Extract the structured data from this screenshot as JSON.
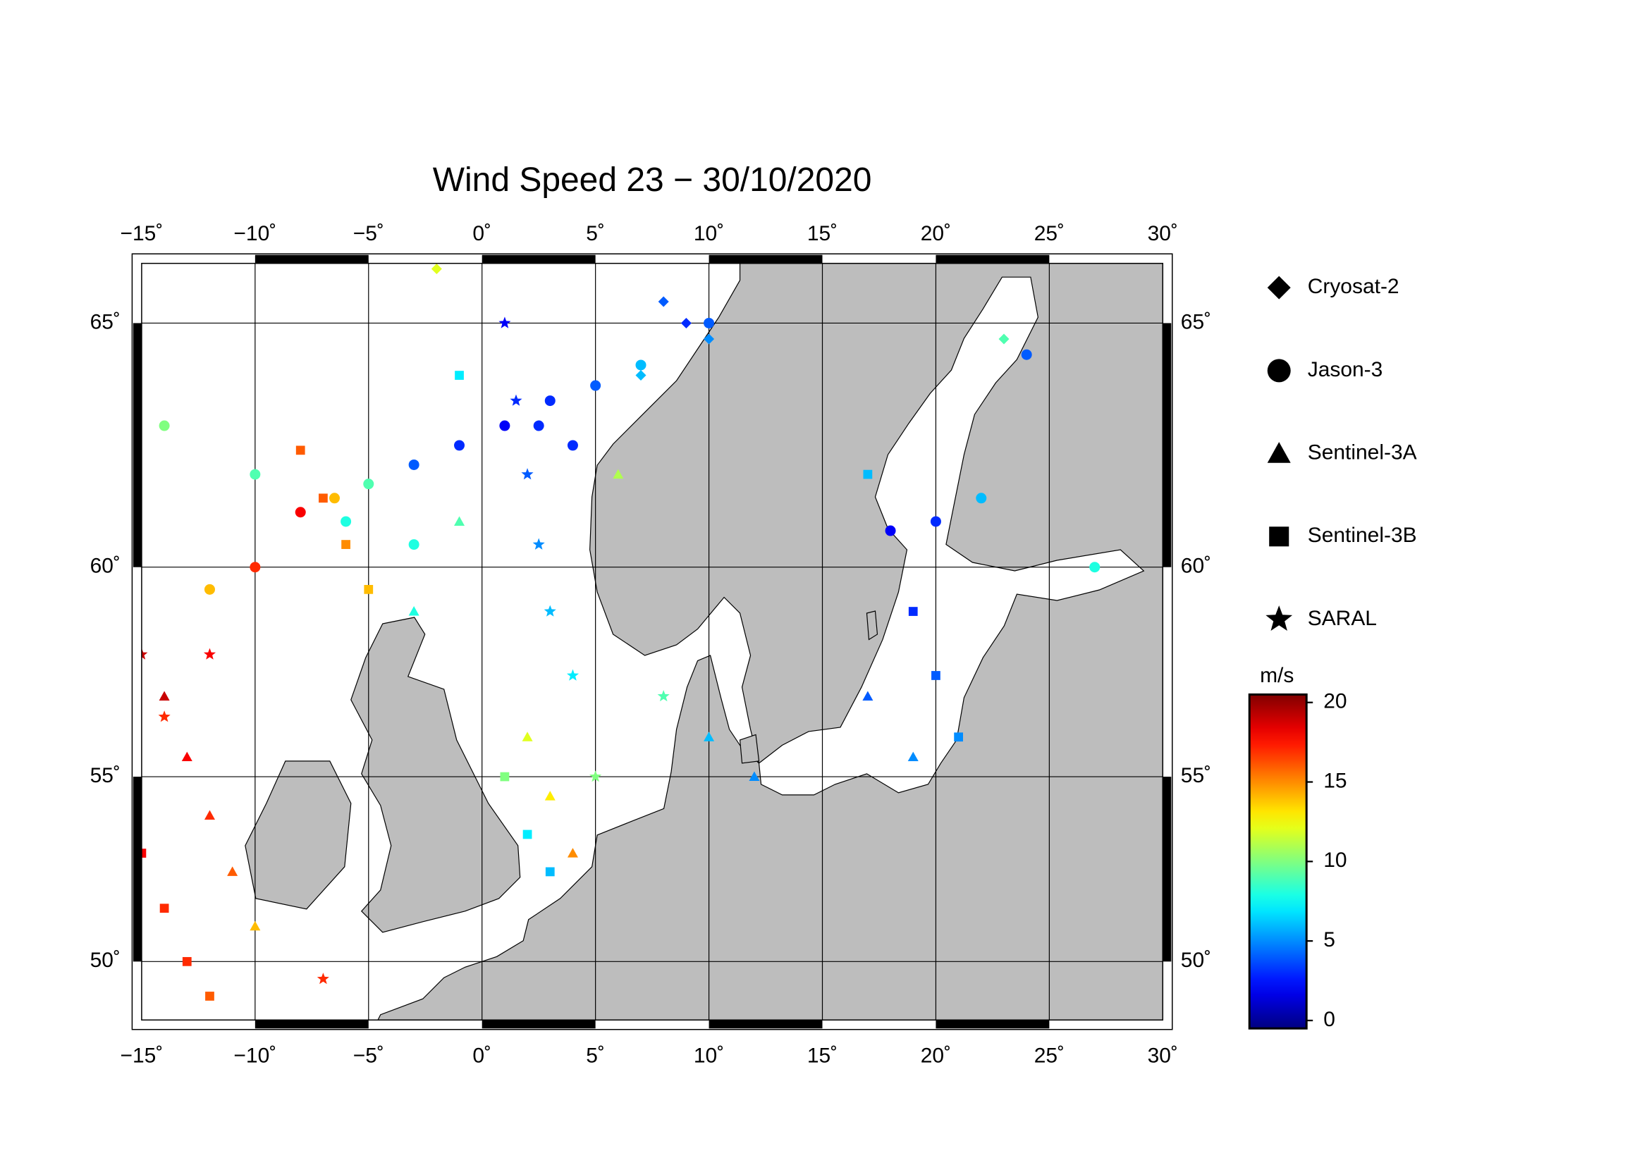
{
  "chart_data": {
    "type": "scatter",
    "title": "Wind Speed 23 − 30/10/2020",
    "projection": "mercator",
    "xlim": [
      -15,
      30
    ],
    "ylim": [
      48.3,
      66.1
    ],
    "xticks": [
      {
        "value": -15,
        "label": "−15˚"
      },
      {
        "value": -10,
        "label": "−10˚"
      },
      {
        "value": -5,
        "label": "−5˚"
      },
      {
        "value": 0,
        "label": "0˚"
      },
      {
        "value": 5,
        "label": "5˚"
      },
      {
        "value": 10,
        "label": "10˚"
      },
      {
        "value": 15,
        "label": "15˚"
      },
      {
        "value": 20,
        "label": "20˚"
      },
      {
        "value": 25,
        "label": "25˚"
      },
      {
        "value": 30,
        "label": "30˚"
      }
    ],
    "yticks": [
      {
        "value": 50,
        "label": "50˚"
      },
      {
        "value": 55,
        "label": "55˚"
      },
      {
        "value": 60,
        "label": "60˚"
      },
      {
        "value": 65,
        "label": "65˚"
      }
    ],
    "grid": true,
    "legend": "right",
    "colorbar": {
      "label": "m/s",
      "lim": [
        -0.5,
        20.5
      ],
      "ticks": [
        0,
        5,
        10,
        15,
        20
      ],
      "colormap": "jet"
    },
    "series": [
      {
        "name": "Cryosat-2",
        "marker": "diamond",
        "x": [
          8,
          9,
          10,
          7,
          -2,
          23
        ],
        "y": [
          65.4,
          65,
          64.7,
          64,
          66,
          64.7
        ],
        "values": [
          4,
          3,
          5,
          6,
          12,
          9
        ]
      },
      {
        "name": "Jason-3",
        "marker": "circle",
        "x": [
          -8,
          -6.5,
          -5,
          -3,
          -1,
          1,
          3,
          5,
          7,
          10,
          -10,
          -12,
          -14,
          -10,
          -6,
          -3,
          18,
          20,
          22,
          24,
          27,
          4,
          2.5
        ],
        "y": [
          61.2,
          61.5,
          61.8,
          62.2,
          62.6,
          63,
          63.5,
          63.8,
          64.2,
          65,
          60,
          59.5,
          63,
          62,
          61,
          60.5,
          60.8,
          61,
          61.5,
          64.4,
          60,
          62.6,
          63
        ],
        "values": [
          18,
          14,
          9,
          4,
          3,
          2,
          3,
          4,
          6,
          4,
          17,
          14,
          10,
          9,
          8,
          8,
          2,
          3,
          6,
          4,
          8,
          3,
          3
        ]
      },
      {
        "name": "Sentinel-3A",
        "marker": "triangle",
        "x": [
          -14,
          -13,
          -12,
          -11,
          -10,
          2,
          3,
          4,
          10,
          12,
          17,
          19,
          -3,
          -1,
          6
        ],
        "y": [
          57,
          55.5,
          54,
          52.5,
          51,
          56,
          54.5,
          53,
          56,
          55,
          57,
          55.5,
          59,
          61,
          62
        ],
        "values": [
          19,
          18,
          17,
          16,
          14,
          12,
          13,
          15,
          6,
          5,
          4,
          5,
          8,
          9,
          11
        ]
      },
      {
        "name": "Sentinel-3B",
        "marker": "square",
        "x": [
          -15,
          -14,
          -13,
          -12,
          -8,
          -7,
          -6,
          -5,
          1,
          2,
          3,
          19,
          20,
          21,
          17,
          -1
        ],
        "y": [
          53,
          51.5,
          50,
          49,
          62.5,
          61.5,
          60.5,
          59.5,
          55,
          53.5,
          52.5,
          59,
          57.5,
          56,
          62,
          64
        ],
        "values": [
          18,
          17,
          17,
          16,
          16,
          16,
          15,
          14,
          10,
          7,
          6,
          3,
          4,
          5,
          6,
          7
        ]
      },
      {
        "name": "SARAL",
        "marker": "star",
        "x": [
          1,
          1.5,
          2,
          2.5,
          3,
          4,
          -15,
          -14,
          -12,
          -7,
          5,
          8
        ],
        "y": [
          65,
          63.5,
          62,
          60.5,
          59,
          57.5,
          58,
          56.5,
          58,
          49.5,
          55,
          57
        ],
        "values": [
          2,
          3,
          4,
          5,
          6,
          7,
          19,
          17,
          18,
          17,
          10,
          9
        ]
      }
    ]
  }
}
